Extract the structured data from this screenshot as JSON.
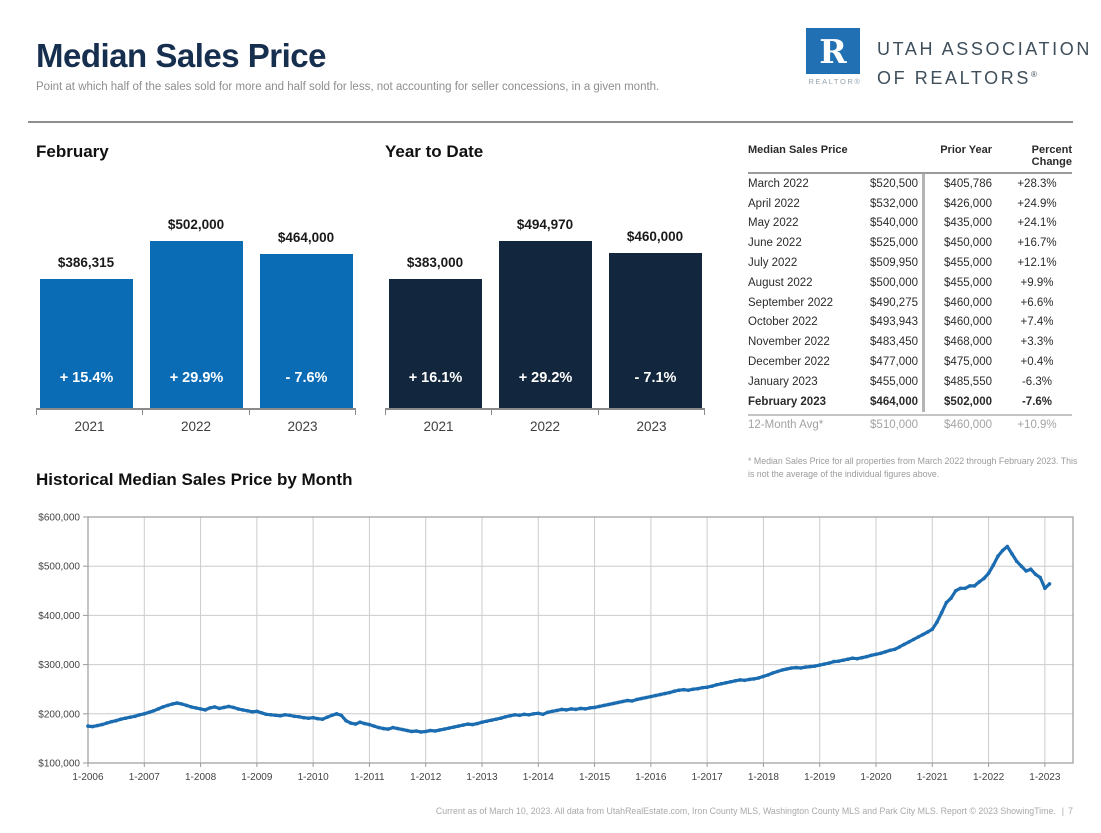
{
  "page": {
    "title": "Median Sales Price",
    "subtitle": "Point at which half of the sales sold for more and half sold for less, not accounting for seller concessions, in a given month.",
    "footer": "Current as of March 10, 2023. All data from UtahRealEstate.com, Iron County MLS, Washington County MLS and Park City MLS. Report © 2023 ShowingTime.",
    "footer_separator": "|",
    "page_number": "7"
  },
  "logo": {
    "mark_letter": "R",
    "mark_caption": "REALTOR®",
    "org_line1": "UTAH ASSOCIATION",
    "org_line2": "OF REALTORS",
    "registered_mark": "®",
    "brand_blue": "#2170b4"
  },
  "colors": {
    "title_navy": "#172f4f",
    "february_bar": "#0a6cb5",
    "ytd_bar": "#12263e",
    "line_blue": "#1b6cb0"
  },
  "chart_data": [
    {
      "id": "february",
      "type": "bar",
      "title": "February",
      "categories": [
        "2021",
        "2022",
        "2023"
      ],
      "values": [
        386315,
        502000,
        464000
      ],
      "value_labels": [
        "$386,315",
        "$502,000",
        "$464,000"
      ],
      "change_labels": [
        "+ 15.4%",
        "+ 29.9%",
        "- 7.6%"
      ],
      "bar_color": "#0a6cb5",
      "ylim": [
        0,
        502000
      ]
    },
    {
      "id": "year_to_date",
      "type": "bar",
      "title": "Year to Date",
      "categories": [
        "2021",
        "2022",
        "2023"
      ],
      "values": [
        383000,
        494970,
        460000
      ],
      "value_labels": [
        "$383,000",
        "$494,970",
        "$460,000"
      ],
      "change_labels": [
        "+ 16.1%",
        "+ 29.2%",
        "- 7.1%"
      ],
      "bar_color": "#12263e",
      "ylim": [
        0,
        494970
      ]
    },
    {
      "id": "historical",
      "type": "line",
      "title": "Historical Median Sales Price by Month",
      "x_start": "1-2006",
      "x_end": "2-2023",
      "x_tick_labels": [
        "1-2006",
        "1-2007",
        "1-2008",
        "1-2009",
        "1-2010",
        "1-2011",
        "1-2012",
        "1-2013",
        "1-2014",
        "1-2015",
        "1-2016",
        "1-2017",
        "1-2018",
        "1-2019",
        "1-2020",
        "1-2021",
        "1-2022",
        "1-2023"
      ],
      "y_ticks": [
        100000,
        200000,
        300000,
        400000,
        500000,
        600000
      ],
      "y_tick_labels": [
        "$100,000",
        "$200,000",
        "$300,000",
        "$400,000",
        "$500,000",
        "$600,000"
      ],
      "ylim": [
        100000,
        600000
      ],
      "grid": true,
      "line_color": "#1b6cb0",
      "monthly_values": [
        175000,
        174000,
        176000,
        178000,
        181000,
        184000,
        186000,
        189000,
        191000,
        193000,
        195000,
        198000,
        200000,
        203000,
        206000,
        210000,
        214000,
        217000,
        220000,
        222000,
        220000,
        217000,
        214000,
        212000,
        210000,
        208000,
        212000,
        214000,
        211000,
        213000,
        215000,
        213000,
        210000,
        208000,
        206000,
        204000,
        205000,
        202000,
        199000,
        198000,
        197000,
        196000,
        198000,
        197000,
        195000,
        194000,
        192000,
        191000,
        192000,
        190000,
        189000,
        193000,
        197000,
        200000,
        197000,
        186000,
        181000,
        179000,
        183000,
        180000,
        178000,
        175000,
        172000,
        170000,
        169000,
        172000,
        170000,
        168000,
        166000,
        164000,
        165000,
        163000,
        164000,
        166000,
        165000,
        167000,
        169000,
        171000,
        173000,
        175000,
        177000,
        179000,
        178000,
        180000,
        183000,
        185000,
        187000,
        189000,
        191000,
        194000,
        196000,
        198000,
        197000,
        199000,
        198000,
        200000,
        201000,
        199000,
        203000,
        205000,
        207000,
        209000,
        208000,
        210000,
        209000,
        211000,
        210000,
        212000,
        213000,
        215000,
        217000,
        219000,
        221000,
        223000,
        225000,
        227000,
        226000,
        229000,
        231000,
        233000,
        235000,
        237000,
        239000,
        241000,
        243000,
        246000,
        248000,
        249000,
        248000,
        250000,
        251000,
        253000,
        254000,
        256000,
        259000,
        261000,
        263000,
        265000,
        267000,
        269000,
        268000,
        270000,
        271000,
        273000,
        276000,
        279000,
        283000,
        286000,
        289000,
        291000,
        293000,
        294000,
        293000,
        295000,
        296000,
        297000,
        299000,
        301000,
        303000,
        306000,
        307000,
        309000,
        311000,
        313000,
        312000,
        314000,
        316000,
        319000,
        321000,
        323000,
        326000,
        329000,
        331000,
        336000,
        341000,
        346000,
        351000,
        356000,
        361000,
        366000,
        372000,
        386315,
        405786,
        426000,
        435000,
        450000,
        455000,
        455000,
        460000,
        460000,
        468000,
        475000,
        485550,
        502000,
        520500,
        532000,
        540000,
        525000,
        509950,
        500000,
        490275,
        493943,
        483450,
        477000,
        455000,
        464000
      ]
    }
  ],
  "table": {
    "title": "Median Sales Price",
    "headers": {
      "prior_year": "Prior Year",
      "percent_change": "Percent Change"
    },
    "rows": [
      {
        "label": "March 2022",
        "value": "$520,500",
        "prior": "$405,786",
        "change": "+28.3%"
      },
      {
        "label": "April 2022",
        "value": "$532,000",
        "prior": "$426,000",
        "change": "+24.9%"
      },
      {
        "label": "May 2022",
        "value": "$540,000",
        "prior": "$435,000",
        "change": "+24.1%"
      },
      {
        "label": "June 2022",
        "value": "$525,000",
        "prior": "$450,000",
        "change": "+16.7%"
      },
      {
        "label": "July 2022",
        "value": "$509,950",
        "prior": "$455,000",
        "change": "+12.1%"
      },
      {
        "label": "August 2022",
        "value": "$500,000",
        "prior": "$455,000",
        "change": "+9.9%"
      },
      {
        "label": "September 2022",
        "value": "$490,275",
        "prior": "$460,000",
        "change": "+6.6%"
      },
      {
        "label": "October 2022",
        "value": "$493,943",
        "prior": "$460,000",
        "change": "+7.4%"
      },
      {
        "label": "November 2022",
        "value": "$483,450",
        "prior": "$468,000",
        "change": "+3.3%"
      },
      {
        "label": "December 2022",
        "value": "$477,000",
        "prior": "$475,000",
        "change": "+0.4%"
      },
      {
        "label": "January 2023",
        "value": "$455,000",
        "prior": "$485,550",
        "change": "-6.3%"
      },
      {
        "label": "February 2023",
        "value": "$464,000",
        "prior": "$502,000",
        "change": "-7.6%",
        "bold": true
      }
    ],
    "avg_row": {
      "label": "12-Month Avg*",
      "value": "$510,000",
      "prior": "$460,000",
      "change": "+10.9%"
    },
    "footnote": "* Median Sales Price for all properties from March 2022 through February 2023. This is not the average of the individual figures above."
  }
}
